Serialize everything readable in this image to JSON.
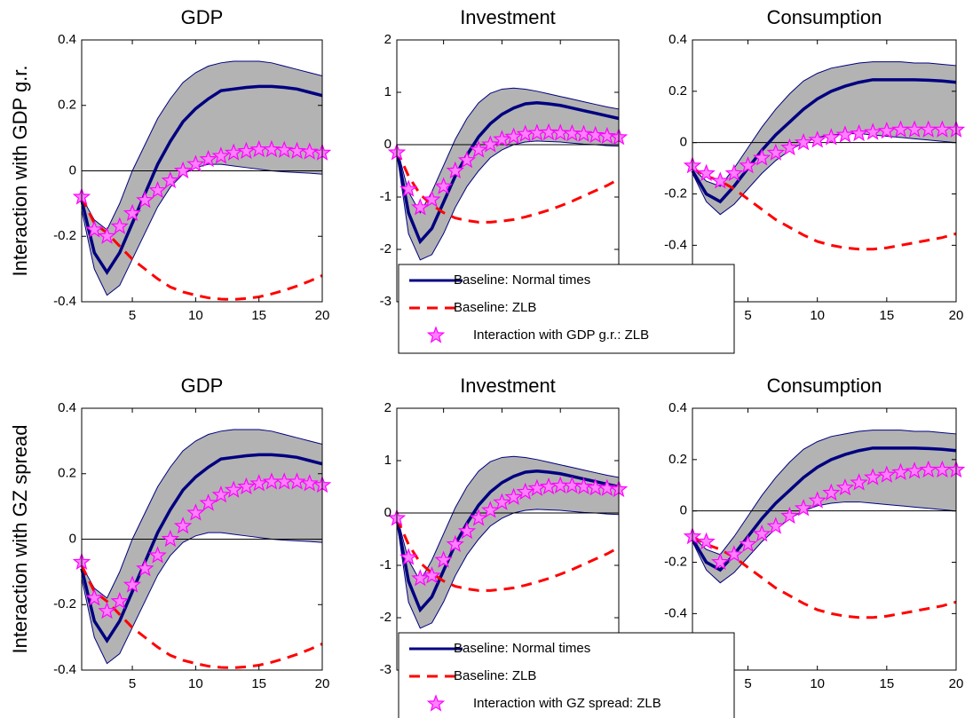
{
  "chart_data": [
    {
      "type": "line",
      "title": "GDP",
      "ylabel": "Interaction with GDP g.r.",
      "x": [
        1,
        2,
        3,
        4,
        5,
        6,
        7,
        8,
        9,
        10,
        11,
        12,
        13,
        14,
        15,
        16,
        17,
        18,
        19,
        20
      ],
      "xlim": [
        1,
        20
      ],
      "xticks": [
        5,
        10,
        15,
        20
      ],
      "ylim": [
        -0.4,
        0.4
      ],
      "yticks": [
        -0.4,
        -0.2,
        0,
        0.2,
        0.4
      ],
      "hline": 0,
      "band": {
        "color": "#b3b3b3",
        "edge": "#000080",
        "upper": [
          -0.08,
          -0.15,
          -0.18,
          -0.1,
          0.0,
          0.08,
          0.16,
          0.22,
          0.27,
          0.3,
          0.32,
          0.33,
          0.335,
          0.335,
          0.335,
          0.33,
          0.32,
          0.31,
          0.3,
          0.29
        ],
        "lower": [
          -0.12,
          -0.3,
          -0.38,
          -0.35,
          -0.27,
          -0.19,
          -0.11,
          -0.05,
          -0.01,
          0.01,
          0.02,
          0.02,
          0.015,
          0.01,
          0.005,
          0.0,
          -0.003,
          -0.005,
          -0.007,
          -0.01
        ]
      },
      "series": [
        {
          "color": "#000080",
          "style": "solid",
          "values": [
            -0.09,
            -0.25,
            -0.31,
            -0.25,
            -0.16,
            -0.07,
            0.02,
            0.09,
            0.15,
            0.19,
            0.22,
            0.245,
            0.25,
            0.255,
            0.258,
            0.258,
            0.255,
            0.25,
            0.24,
            0.23
          ]
        },
        {
          "color": "#ff0000",
          "style": "dashed",
          "values": [
            -0.08,
            -0.16,
            -0.19,
            -0.23,
            -0.27,
            -0.3,
            -0.33,
            -0.355,
            -0.37,
            -0.38,
            -0.388,
            -0.392,
            -0.393,
            -0.39,
            -0.385,
            -0.376,
            -0.365,
            -0.352,
            -0.337,
            -0.32
          ]
        },
        {
          "color": "#ff00ff",
          "style": "star",
          "values": [
            -0.08,
            -0.18,
            -0.2,
            -0.17,
            -0.13,
            -0.09,
            -0.06,
            -0.03,
            0.0,
            0.02,
            0.035,
            0.045,
            0.055,
            0.06,
            0.065,
            0.065,
            0.063,
            0.06,
            0.058,
            0.055
          ]
        }
      ]
    },
    {
      "type": "line",
      "title": "Investment",
      "x": [
        1,
        2,
        3,
        4,
        5,
        6,
        7,
        8,
        9,
        10,
        11,
        12,
        13,
        14,
        15,
        16,
        17,
        18,
        19,
        20
      ],
      "xlim": [
        1,
        20
      ],
      "xticks": [
        5,
        10,
        15,
        20
      ],
      "ylim": [
        -3,
        2
      ],
      "yticks": [
        -3,
        -2,
        -1,
        0,
        1,
        2
      ],
      "hline": 0,
      "band": {
        "color": "#b3b3b3",
        "edge": "#000080",
        "upper": [
          -0.05,
          -0.9,
          -1.3,
          -0.9,
          -0.4,
          0.1,
          0.5,
          0.8,
          0.98,
          1.06,
          1.08,
          1.06,
          1.02,
          0.97,
          0.92,
          0.87,
          0.82,
          0.77,
          0.72,
          0.68
        ],
        "lower": [
          -0.15,
          -1.7,
          -2.2,
          -2.1,
          -1.7,
          -1.2,
          -0.8,
          -0.5,
          -0.25,
          -0.1,
          0.0,
          0.05,
          0.07,
          0.06,
          0.05,
          0.03,
          0.01,
          0.0,
          -0.02,
          -0.03
        ]
      },
      "legend": "lower-left",
      "series": [
        {
          "name": "Baseline: Normal times",
          "color": "#000080",
          "style": "solid",
          "values": [
            -0.1,
            -1.3,
            -1.85,
            -1.6,
            -1.1,
            -0.6,
            -0.2,
            0.15,
            0.4,
            0.58,
            0.7,
            0.78,
            0.8,
            0.78,
            0.75,
            0.7,
            0.65,
            0.6,
            0.55,
            0.5
          ]
        },
        {
          "name": "Baseline: ZLB",
          "color": "#ff0000",
          "style": "dashed",
          "values": [
            -0.1,
            -0.6,
            -0.95,
            -1.15,
            -1.3,
            -1.4,
            -1.45,
            -1.48,
            -1.48,
            -1.46,
            -1.43,
            -1.38,
            -1.32,
            -1.25,
            -1.17,
            -1.08,
            -0.98,
            -0.88,
            -0.78,
            -0.66
          ]
        },
        {
          "name": "Interaction with GDP g.r.: ZLB",
          "color": "#ff00ff",
          "style": "star",
          "values": [
            -0.15,
            -0.85,
            -1.2,
            -1.05,
            -0.8,
            -0.5,
            -0.3,
            -0.1,
            0.0,
            0.1,
            0.15,
            0.2,
            0.22,
            0.23,
            0.22,
            0.21,
            0.2,
            0.18,
            0.16,
            0.14
          ]
        }
      ]
    },
    {
      "type": "line",
      "title": "Consumption",
      "x": [
        1,
        2,
        3,
        4,
        5,
        6,
        7,
        8,
        9,
        10,
        11,
        12,
        13,
        14,
        15,
        16,
        17,
        18,
        19,
        20
      ],
      "xlim": [
        1,
        20
      ],
      "xticks": [
        5,
        10,
        15,
        20
      ],
      "ylim": [
        -0.62,
        0.4
      ],
      "yticks": [
        -0.4,
        -0.2,
        0,
        0.2,
        0.4
      ],
      "hline": 0,
      "band": {
        "color": "#b3b3b3",
        "edge": "#000080",
        "upper": [
          -0.1,
          -0.15,
          -0.17,
          -0.1,
          -0.02,
          0.06,
          0.13,
          0.19,
          0.24,
          0.27,
          0.29,
          0.3,
          0.31,
          0.315,
          0.315,
          0.315,
          0.31,
          0.31,
          0.305,
          0.3
        ],
        "lower": [
          -0.12,
          -0.23,
          -0.28,
          -0.24,
          -0.18,
          -0.12,
          -0.07,
          -0.03,
          0.0,
          0.02,
          0.03,
          0.035,
          0.035,
          0.03,
          0.025,
          0.02,
          0.015,
          0.01,
          0.005,
          0.0
        ]
      },
      "series": [
        {
          "color": "#000080",
          "style": "solid",
          "values": [
            -0.11,
            -0.2,
            -0.23,
            -0.17,
            -0.1,
            -0.03,
            0.03,
            0.08,
            0.13,
            0.17,
            0.2,
            0.22,
            0.235,
            0.245,
            0.245,
            0.245,
            0.245,
            0.243,
            0.24,
            0.235
          ]
        },
        {
          "color": "#ff0000",
          "style": "dashed",
          "values": [
            -0.1,
            -0.13,
            -0.15,
            -0.18,
            -0.22,
            -0.26,
            -0.3,
            -0.33,
            -0.36,
            -0.385,
            -0.4,
            -0.41,
            -0.415,
            -0.415,
            -0.41,
            -0.4,
            -0.39,
            -0.38,
            -0.37,
            -0.355
          ]
        },
        {
          "color": "#ff00ff",
          "style": "star",
          "values": [
            -0.09,
            -0.12,
            -0.15,
            -0.12,
            -0.09,
            -0.06,
            -0.04,
            -0.02,
            0.0,
            0.01,
            0.02,
            0.03,
            0.035,
            0.04,
            0.045,
            0.05,
            0.05,
            0.05,
            0.05,
            0.05
          ]
        }
      ]
    },
    {
      "type": "line",
      "title": "GDP",
      "ylabel": "Interaction with GZ spread",
      "x": [
        1,
        2,
        3,
        4,
        5,
        6,
        7,
        8,
        9,
        10,
        11,
        12,
        13,
        14,
        15,
        16,
        17,
        18,
        19,
        20
      ],
      "xlim": [
        1,
        20
      ],
      "xticks": [
        5,
        10,
        15,
        20
      ],
      "ylim": [
        -0.4,
        0.4
      ],
      "yticks": [
        -0.4,
        -0.2,
        0,
        0.2,
        0.4
      ],
      "hline": 0,
      "band": {
        "color": "#b3b3b3",
        "edge": "#000080",
        "upper": [
          -0.08,
          -0.15,
          -0.18,
          -0.1,
          0.0,
          0.08,
          0.16,
          0.22,
          0.27,
          0.3,
          0.32,
          0.33,
          0.335,
          0.335,
          0.335,
          0.33,
          0.32,
          0.31,
          0.3,
          0.29
        ],
        "lower": [
          -0.12,
          -0.3,
          -0.38,
          -0.35,
          -0.27,
          -0.19,
          -0.11,
          -0.05,
          -0.01,
          0.01,
          0.02,
          0.02,
          0.015,
          0.01,
          0.005,
          0.0,
          -0.003,
          -0.005,
          -0.007,
          -0.01
        ]
      },
      "series": [
        {
          "color": "#000080",
          "style": "solid",
          "values": [
            -0.09,
            -0.25,
            -0.31,
            -0.25,
            -0.16,
            -0.07,
            0.02,
            0.09,
            0.15,
            0.19,
            0.22,
            0.245,
            0.25,
            0.255,
            0.258,
            0.258,
            0.255,
            0.25,
            0.24,
            0.23
          ]
        },
        {
          "color": "#ff0000",
          "style": "dashed",
          "values": [
            -0.08,
            -0.16,
            -0.19,
            -0.23,
            -0.27,
            -0.3,
            -0.33,
            -0.355,
            -0.37,
            -0.38,
            -0.388,
            -0.392,
            -0.393,
            -0.39,
            -0.385,
            -0.376,
            -0.365,
            -0.352,
            -0.337,
            -0.32
          ]
        },
        {
          "color": "#ff00ff",
          "style": "star",
          "values": [
            -0.07,
            -0.18,
            -0.22,
            -0.19,
            -0.14,
            -0.09,
            -0.05,
            0.0,
            0.04,
            0.08,
            0.11,
            0.135,
            0.15,
            0.16,
            0.17,
            0.175,
            0.175,
            0.175,
            0.17,
            0.165
          ]
        }
      ]
    },
    {
      "type": "line",
      "title": "Investment",
      "x": [
        1,
        2,
        3,
        4,
        5,
        6,
        7,
        8,
        9,
        10,
        11,
        12,
        13,
        14,
        15,
        16,
        17,
        18,
        19,
        20
      ],
      "xlim": [
        1,
        20
      ],
      "xticks": [
        5,
        10,
        15,
        20
      ],
      "ylim": [
        -3,
        2
      ],
      "yticks": [
        -3,
        -2,
        -1,
        0,
        1,
        2
      ],
      "hline": 0,
      "band": {
        "color": "#b3b3b3",
        "edge": "#000080",
        "upper": [
          -0.05,
          -0.9,
          -1.3,
          -0.9,
          -0.4,
          0.1,
          0.5,
          0.8,
          0.98,
          1.06,
          1.08,
          1.06,
          1.02,
          0.97,
          0.92,
          0.87,
          0.82,
          0.77,
          0.72,
          0.68
        ],
        "lower": [
          -0.15,
          -1.7,
          -2.2,
          -2.1,
          -1.7,
          -1.2,
          -0.8,
          -0.5,
          -0.25,
          -0.1,
          0.0,
          0.05,
          0.07,
          0.06,
          0.05,
          0.03,
          0.01,
          0.0,
          -0.02,
          -0.03
        ]
      },
      "legend": "lower-left",
      "series": [
        {
          "name": "Baseline: Normal times",
          "color": "#000080",
          "style": "solid",
          "values": [
            -0.1,
            -1.3,
            -1.85,
            -1.6,
            -1.1,
            -0.6,
            -0.2,
            0.15,
            0.4,
            0.58,
            0.7,
            0.78,
            0.8,
            0.78,
            0.75,
            0.7,
            0.65,
            0.6,
            0.55,
            0.5
          ]
        },
        {
          "name": "Baseline: ZLB",
          "color": "#ff0000",
          "style": "dashed",
          "values": [
            -0.1,
            -0.6,
            -0.95,
            -1.15,
            -1.3,
            -1.4,
            -1.45,
            -1.48,
            -1.48,
            -1.46,
            -1.43,
            -1.38,
            -1.32,
            -1.25,
            -1.17,
            -1.08,
            -0.98,
            -0.88,
            -0.78,
            -0.66
          ]
        },
        {
          "name": "Interaction with GZ spread: ZLB",
          "color": "#ff00ff",
          "style": "star",
          "values": [
            -0.1,
            -0.85,
            -1.25,
            -1.2,
            -0.9,
            -0.6,
            -0.35,
            -0.1,
            0.05,
            0.2,
            0.3,
            0.4,
            0.47,
            0.5,
            0.52,
            0.52,
            0.5,
            0.48,
            0.47,
            0.45
          ]
        }
      ]
    },
    {
      "type": "line",
      "title": "Consumption",
      "x": [
        1,
        2,
        3,
        4,
        5,
        6,
        7,
        8,
        9,
        10,
        11,
        12,
        13,
        14,
        15,
        16,
        17,
        18,
        19,
        20
      ],
      "xlim": [
        1,
        20
      ],
      "xticks": [
        5,
        10,
        15,
        20
      ],
      "ylim": [
        -0.62,
        0.4
      ],
      "yticks": [
        -0.4,
        -0.2,
        0,
        0.2,
        0.4
      ],
      "hline": 0,
      "band": {
        "color": "#b3b3b3",
        "edge": "#000080",
        "upper": [
          -0.1,
          -0.15,
          -0.17,
          -0.1,
          -0.02,
          0.06,
          0.13,
          0.19,
          0.24,
          0.27,
          0.29,
          0.3,
          0.31,
          0.315,
          0.315,
          0.315,
          0.31,
          0.31,
          0.305,
          0.3
        ],
        "lower": [
          -0.12,
          -0.23,
          -0.28,
          -0.24,
          -0.18,
          -0.12,
          -0.07,
          -0.03,
          0.0,
          0.02,
          0.03,
          0.035,
          0.035,
          0.03,
          0.025,
          0.02,
          0.015,
          0.01,
          0.005,
          0.0
        ]
      },
      "series": [
        {
          "color": "#000080",
          "style": "solid",
          "values": [
            -0.11,
            -0.2,
            -0.23,
            -0.17,
            -0.1,
            -0.03,
            0.03,
            0.08,
            0.13,
            0.17,
            0.2,
            0.22,
            0.235,
            0.245,
            0.245,
            0.245,
            0.245,
            0.243,
            0.24,
            0.235
          ]
        },
        {
          "color": "#ff0000",
          "style": "dashed",
          "values": [
            -0.1,
            -0.13,
            -0.15,
            -0.18,
            -0.22,
            -0.26,
            -0.3,
            -0.33,
            -0.36,
            -0.385,
            -0.4,
            -0.41,
            -0.415,
            -0.415,
            -0.41,
            -0.4,
            -0.39,
            -0.38,
            -0.37,
            -0.355
          ]
        },
        {
          "color": "#ff00ff",
          "style": "star",
          "values": [
            -0.1,
            -0.12,
            -0.2,
            -0.17,
            -0.13,
            -0.09,
            -0.06,
            -0.02,
            0.01,
            0.04,
            0.07,
            0.09,
            0.11,
            0.13,
            0.14,
            0.15,
            0.155,
            0.16,
            0.16,
            0.16
          ]
        }
      ]
    }
  ]
}
